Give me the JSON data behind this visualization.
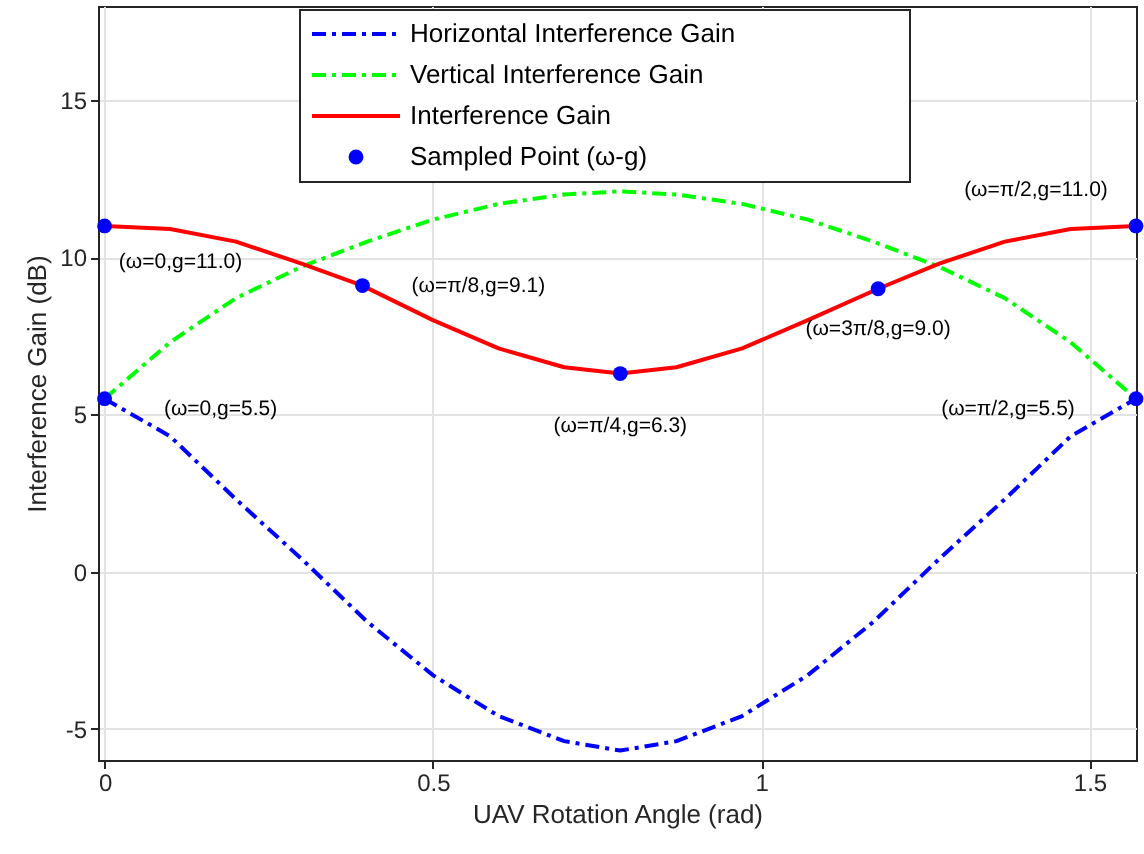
{
  "chart_data": {
    "type": "line",
    "xlabel": "UAV Rotation Angle (rad)",
    "ylabel": "Interference Gain (dB)",
    "xlim": [
      -0.01,
      1.5708
    ],
    "xticks": [
      0,
      0.5,
      1,
      1.5
    ],
    "ylim": [
      -6,
      18
    ],
    "yticks": [
      -5,
      0,
      5,
      10,
      15
    ],
    "grid": true,
    "legend": "top",
    "line_style": "solid",
    "series": [
      {
        "name": "Horizontal Interference Gain",
        "color": "#0000ff",
        "line_style": "dashed",
        "x": [
          0,
          0.1,
          0.2,
          0.3,
          0.4,
          0.5,
          0.6,
          0.7,
          0.7854,
          0.871,
          0.971,
          1.071,
          1.171,
          1.271,
          1.371,
          1.471,
          1.5708
        ],
        "values": [
          5.5,
          4.3,
          2.3,
          0.4,
          -1.6,
          -3.3,
          -4.6,
          -5.4,
          -5.7,
          -5.4,
          -4.6,
          -3.3,
          -1.6,
          0.4,
          2.3,
          4.3,
          5.5
        ]
      },
      {
        "name": "Vertical Interference Gain",
        "color": "#00ff00",
        "line_style": "dashed",
        "x": [
          0,
          0.1,
          0.2,
          0.3,
          0.4,
          0.5,
          0.6,
          0.7,
          0.7854,
          0.871,
          0.971,
          1.071,
          1.171,
          1.271,
          1.371,
          1.471,
          1.5708
        ],
        "values": [
          5.5,
          7.3,
          8.7,
          9.7,
          10.5,
          11.2,
          11.7,
          12.0,
          12.1,
          12.0,
          11.7,
          11.2,
          10.5,
          9.7,
          8.7,
          7.3,
          5.5
        ]
      },
      {
        "name": "Interference Gain",
        "color": "#ff0000",
        "x": [
          0,
          0.1,
          0.2,
          0.3,
          0.3927,
          0.5,
          0.6,
          0.7,
          0.7854,
          0.871,
          0.971,
          1.071,
          1.1781,
          1.271,
          1.371,
          1.471,
          1.5708
        ],
        "values": [
          11.0,
          10.9,
          10.5,
          9.8,
          9.1,
          8.0,
          7.1,
          6.5,
          6.3,
          6.5,
          7.1,
          8.0,
          9.0,
          9.8,
          10.5,
          10.9,
          11.0
        ]
      },
      {
        "name": "Sampled Point (ω-g)",
        "type": "scatter",
        "marker": "circle",
        "color": "#0000ff",
        "x": [
          0,
          0.3927,
          0.7854,
          1.1781,
          1.5708,
          0,
          1.5708
        ],
        "values": [
          11.0,
          9.1,
          6.3,
          9.0,
          11.0,
          5.5,
          5.5
        ]
      }
    ],
    "annotations": [
      {
        "text": "(ω=0,g=11.0)",
        "x": 0,
        "y": 11.0
      },
      {
        "text": "(ω=π/8,g=9.1)",
        "x": 0.3927,
        "y": 9.1
      },
      {
        "text": "(ω=π/4,g=6.3)",
        "x": 0.7854,
        "y": 6.3
      },
      {
        "text": "(ω=3π/8,g=9.0)",
        "x": 1.1781,
        "y": 9.0
      },
      {
        "text": "(ω=π/2,g=11.0)",
        "x": 1.5708,
        "y": 11.0
      },
      {
        "text": "(ω=0,g=5.5)",
        "x": 0,
        "y": 5.5
      },
      {
        "text": "(ω=π/2,g=5.5)",
        "x": 1.5708,
        "y": 5.5
      }
    ]
  }
}
